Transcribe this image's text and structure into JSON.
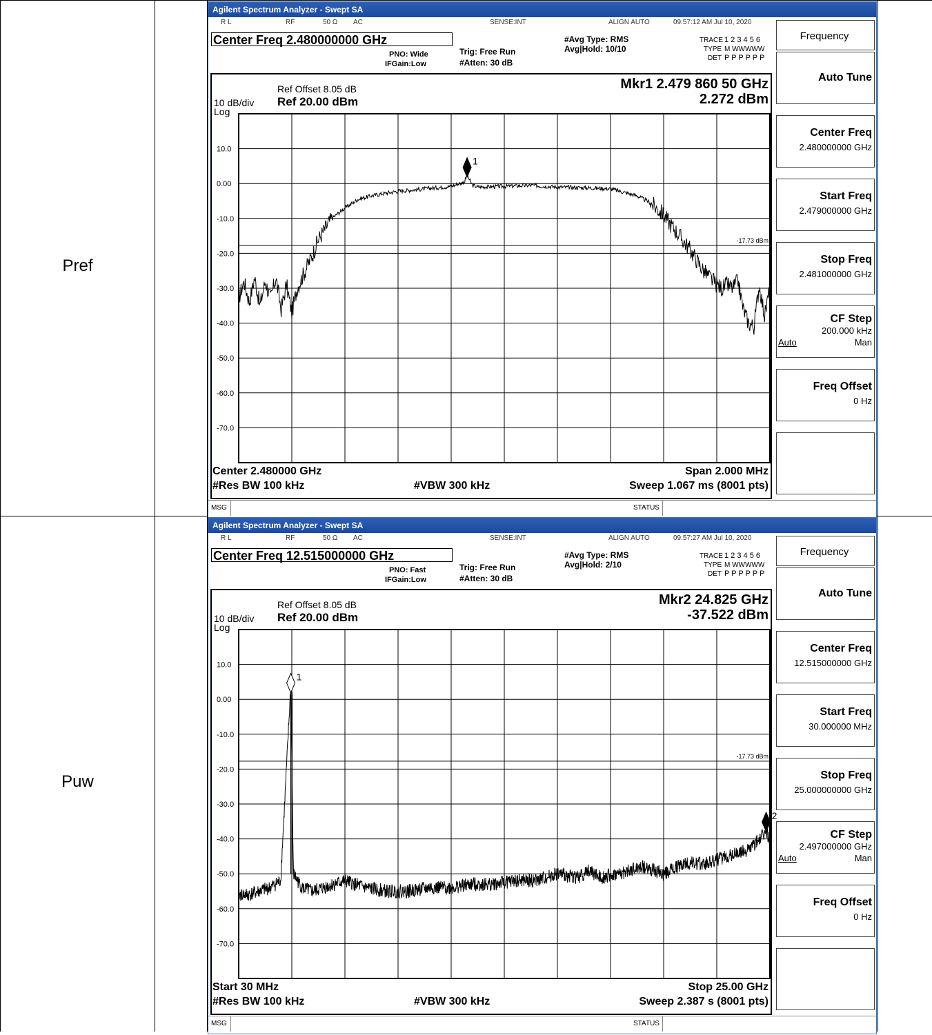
{
  "rows": [
    {
      "label": "Pref",
      "window_title": "Agilent Spectrum Analyzer - Swept SA",
      "status": {
        "rl": "R L",
        "rf": "RF",
        "ohm": "50 Ω",
        "ac": "AC",
        "sense": "SENSE:INT",
        "align": "ALIGN AUTO",
        "time": "09:57:12 AM Jul 10, 2020"
      },
      "center_freq_line": "Center Freq 2.480000000 GHz",
      "pno": "PNO: Wide",
      "ifgain": "IFGain:Low",
      "trig": "Trig: Free Run",
      "atten": "#Atten: 30 dB",
      "avg_type": "#Avg Type: RMS",
      "avg_hold": "Avg|Hold: 10/10",
      "trace": "TRACE",
      "trace_nums": "1 2 3 4 5 6",
      "type": "TYPE",
      "type_vals": "M WWWWW",
      "det": "DET",
      "det_vals": "P P P P P P",
      "ref_offset": "Ref Offset 8.05 dB",
      "scale": "10 dB/div",
      "log": "Log",
      "ref_level": "Ref 20.00 dBm",
      "marker_freq": "Mkr1 2.479 860 50 GHz",
      "marker_val": "2.272 dBm",
      "bottom_left1": "Center 2.480000 GHz",
      "bottom_right1": "Span 2.000 MHz",
      "bottom_left2": "#Res BW 100 kHz",
      "bottom_mid2": "#VBW 300 kHz",
      "bottom_right2": "Sweep  1.067 ms (8001 pts)",
      "msg": "MSG",
      "status_label": "STATUS",
      "softkeys": {
        "header": "Frequency",
        "auto_tune": "Auto Tune",
        "center_title": "Center Freq",
        "center_val": "2.480000000 GHz",
        "start_title": "Start Freq",
        "start_val": "2.479000000 GHz",
        "stop_title": "Stop Freq",
        "stop_val": "2.481000000 GHz",
        "cf_title": "CF Step",
        "cf_val": "200.000 kHz",
        "cf_auto": "Auto",
        "cf_man": "Man",
        "offset_title": "Freq Offset",
        "offset_val": "0 Hz"
      }
    },
    {
      "label": "Puw",
      "window_title": "Agilent Spectrum Analyzer - Swept SA",
      "status": {
        "rl": "R L",
        "rf": "RF",
        "ohm": "50 Ω",
        "ac": "AC",
        "sense": "SENSE:INT",
        "align": "ALIGN AUTO",
        "time": "09:57:27 AM Jul 10, 2020"
      },
      "center_freq_line": "Center Freq 12.515000000 GHz",
      "pno": "PNO: Fast",
      "ifgain": "IFGain:Low",
      "trig": "Trig: Free Run",
      "atten": "#Atten: 30 dB",
      "avg_type": "#Avg Type: RMS",
      "avg_hold": "Avg|Hold: 2/10",
      "trace": "TRACE",
      "trace_nums": "1 2 3 4 5 6",
      "type": "TYPE",
      "type_vals": "M WWWWW",
      "det": "DET",
      "det_vals": "P P P P P P",
      "ref_offset": "Ref Offset 8.05 dB",
      "scale": "10 dB/div",
      "log": "Log",
      "ref_level": "Ref 20.00 dBm",
      "marker_freq": "Mkr2 24.825 GHz",
      "marker_val": "-37.522 dBm",
      "bottom_left1": "Start 30 MHz",
      "bottom_right1": "Stop 25.00 GHz",
      "bottom_left2": "#Res BW 100 kHz",
      "bottom_mid2": "#VBW 300 kHz",
      "bottom_right2": "Sweep  2.387 s (8001 pts)",
      "msg": "MSG",
      "status_label": "STATUS",
      "softkeys": {
        "header": "Frequency",
        "auto_tune": "Auto Tune",
        "center_title": "Center Freq",
        "center_val": "12.515000000 GHz",
        "start_title": "Start Freq",
        "start_val": "30.000000 MHz",
        "stop_title": "Stop Freq",
        "stop_val": "25.000000000 GHz",
        "cf_title": "CF Step",
        "cf_val": "2.497000000 GHz",
        "cf_auto": "Auto",
        "cf_man": "Man",
        "offset_title": "Freq Offset",
        "offset_val": "0 Hz"
      }
    }
  ],
  "chart_data": [
    {
      "type": "line",
      "ylim": [
        -80,
        20
      ],
      "yticks": [
        "10.0",
        "0.00",
        "-10.0",
        "-20.0",
        "-30.0",
        "-40.0",
        "-50.0",
        "-60.0",
        "-70.0"
      ],
      "xlim_ghz": [
        2.479,
        2.481
      ],
      "limit_line": {
        "value": -17.73,
        "label": "-17.73 dBm"
      },
      "marker": {
        "label": "1",
        "x": 2.47986,
        "y": 2.27,
        "filled": true
      },
      "series": [
        {
          "x": [
            2.479,
            2.47902,
            2.47904,
            2.47906,
            2.47908,
            2.4791,
            2.47912,
            2.47914,
            2.47916,
            2.47918,
            2.4792,
            2.47922,
            2.47925,
            2.47928,
            2.4793,
            2.47935,
            2.4794,
            2.47945,
            2.4795,
            2.47955,
            2.4796,
            2.4797,
            2.4798,
            2.47985,
            2.47986,
            2.47988,
            2.4799,
            2.48,
            2.4801,
            2.4802,
            2.4803,
            2.4804,
            2.4805,
            2.48055,
            2.4806,
            2.48065,
            2.4807,
            2.48075,
            2.4808,
            2.48082,
            2.48084,
            2.48086,
            2.48088,
            2.4809,
            2.48092,
            2.48094,
            2.48096,
            2.48098,
            2.481
          ],
          "y": [
            -33,
            -28,
            -34,
            -27,
            -35,
            -28,
            -33,
            -27,
            -36,
            -29,
            -37,
            -30,
            -25,
            -20,
            -16,
            -10,
            -7,
            -4.5,
            -3.5,
            -2.8,
            -2.2,
            -1.5,
            -0.8,
            0.5,
            2.3,
            -0.5,
            -1,
            -0.8,
            -0.5,
            -1,
            -1.2,
            -1.5,
            -3.5,
            -5.5,
            -9,
            -14,
            -19,
            -25,
            -29,
            -30,
            -29,
            -30,
            -28,
            -36,
            -40,
            -41,
            -29,
            -38,
            -30
          ]
        }
      ]
    },
    {
      "type": "line",
      "ylim": [
        -80,
        20
      ],
      "yticks": [
        "10.0",
        "0.00",
        "-10.0",
        "-20.0",
        "-30.0",
        "-40.0",
        "-50.0",
        "-60.0",
        "-70.0"
      ],
      "xlim_ghz": [
        0.03,
        25.0
      ],
      "limit_line": {
        "value": -17.73,
        "label": "-17.73 dBm"
      },
      "markers": [
        {
          "label": "1",
          "x": 2.48,
          "y": 2.3,
          "filled": false
        },
        {
          "label": "2",
          "x": 24.825,
          "y": -37.5,
          "filled": true
        }
      ],
      "series": [
        {
          "x": [
            0.03,
            0.5,
            1.0,
            1.5,
            2.0,
            2.48,
            2.6,
            3.0,
            3.5,
            4.0,
            5.0,
            6.0,
            7.0,
            8.0,
            9.0,
            10.0,
            11.0,
            12.0,
            13.0,
            14.0,
            15.0,
            16.0,
            16.5,
            17.0,
            18.0,
            19.0,
            20.0,
            21.0,
            22.0,
            23.0,
            24.0,
            24.825,
            25.0
          ],
          "y": [
            -56,
            -56,
            -55,
            -54,
            -52,
            4,
            -50,
            -54,
            -55,
            -54,
            -52,
            -54,
            -55,
            -55,
            -54,
            -54,
            -53,
            -53,
            -52,
            -52,
            -50,
            -51,
            -49,
            -51,
            -50,
            -48,
            -50,
            -47,
            -47,
            -45,
            -43,
            -38,
            -41
          ]
        }
      ]
    }
  ]
}
